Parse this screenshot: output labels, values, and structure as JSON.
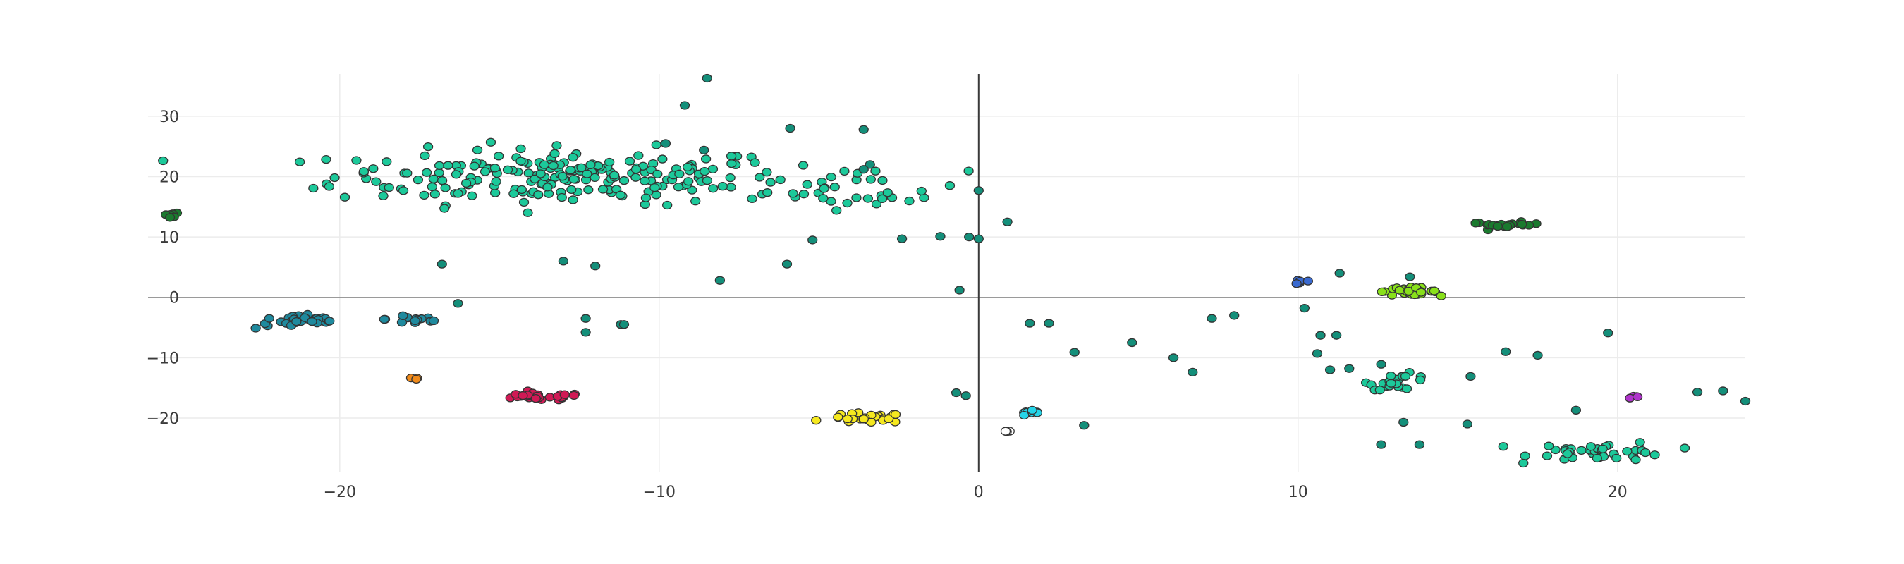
{
  "chart_data": {
    "type": "scatter",
    "title": "",
    "xlabel": "",
    "ylabel": "",
    "xlim": [
      -26,
      24
    ],
    "ylim": [
      -29,
      37
    ],
    "x_ticks": [
      -20,
      -10,
      0,
      10,
      20
    ],
    "y_ticks": [
      -20,
      -10,
      0,
      10,
      20,
      30
    ],
    "x_tick_labels": [
      "−20",
      "−10",
      "0",
      "10",
      "20"
    ],
    "y_tick_labels": [
      "−20",
      "−10",
      "0",
      "10",
      "20",
      "30"
    ],
    "grid": true,
    "legend": "none",
    "clusters": [
      {
        "name": "main-teal",
        "color": "#1cc99a",
        "center": [
          -13,
          20
        ],
        "spread": [
          6.0,
          3.8
        ],
        "count": 230
      },
      {
        "name": "main-teal-right",
        "color": "#1cc99a",
        "center": [
          -3.5,
          18
        ],
        "spread": [
          2.6,
          2.8
        ],
        "count": 30
      },
      {
        "name": "upper-right-green",
        "color": "#1a7a2e",
        "center": [
          16.5,
          12
        ],
        "spread": [
          0.9,
          0.4
        ],
        "count": 20
      },
      {
        "name": "upper-left-green",
        "color": "#1a7a2e",
        "center": [
          -25.2,
          13.8
        ],
        "spread": [
          0.5,
          0.35
        ],
        "count": 6
      },
      {
        "name": "lime",
        "color": "#88e01a",
        "center": [
          13.4,
          1
        ],
        "spread": [
          0.8,
          0.5
        ],
        "count": 30
      },
      {
        "name": "royal-blue",
        "color": "#3a6ad0",
        "center": [
          10.2,
          2.6
        ],
        "spread": [
          0.3,
          0.3
        ],
        "count": 5
      },
      {
        "name": "teal-blue-left",
        "color": "#1f8a9e",
        "center": [
          -21.2,
          -4
        ],
        "spread": [
          1.2,
          1.0
        ],
        "count": 30
      },
      {
        "name": "teal-blue-mid",
        "color": "#1f8a9e",
        "center": [
          -17.6,
          -3.6
        ],
        "spread": [
          0.8,
          0.9
        ],
        "count": 15
      },
      {
        "name": "crimson",
        "color": "#d01a55",
        "center": [
          -13.8,
          -16.5
        ],
        "spread": [
          1.2,
          0.5
        ],
        "count": 30
      },
      {
        "name": "orange",
        "color": "#f08a1a",
        "center": [
          -17.8,
          -13.5
        ],
        "spread": [
          0.5,
          0.3
        ],
        "count": 3
      },
      {
        "name": "yellow",
        "color": "#f5e81f",
        "center": [
          -3.5,
          -20
        ],
        "spread": [
          1.0,
          0.7
        ],
        "count": 30
      },
      {
        "name": "cyan",
        "color": "#25d4e8",
        "center": [
          1.6,
          -19.3
        ],
        "spread": [
          0.4,
          0.4
        ],
        "count": 8
      },
      {
        "name": "white",
        "color": "#ffffff",
        "center": [
          0.9,
          -22.3
        ],
        "spread": [
          0.15,
          0.15
        ],
        "count": 3
      },
      {
        "name": "lower-right-teal",
        "color": "#1cc99a",
        "center": [
          19.5,
          -25.5
        ],
        "spread": [
          1.8,
          1.3
        ],
        "count": 42
      },
      {
        "name": "mid-right-teal",
        "color": "#1cc99a",
        "center": [
          13.2,
          -14
        ],
        "spread": [
          0.8,
          1.1
        ],
        "count": 22
      },
      {
        "name": "purple",
        "color": "#b033cc",
        "center": [
          20.6,
          -16.5
        ],
        "spread": [
          0.25,
          0.25
        ],
        "count": 4
      },
      {
        "name": "sparse-dark-teal",
        "color": "#148f7a",
        "center": [
          2,
          -5
        ],
        "spread": [
          12,
          12
        ],
        "count": 0
      }
    ],
    "scattered_points": {
      "color": "#148f7a",
      "x": [
        -8.5,
        -9.2,
        -5.9,
        -3.6,
        -8.6,
        -9.8,
        -3.4,
        -3.6,
        -6,
        -5.2,
        -2.4,
        -1.2,
        -0.3,
        0,
        0.9,
        -0.6,
        -8.1,
        -0.7,
        -0.4,
        0,
        1.6,
        2.2,
        3.3,
        3,
        4.8,
        6.1,
        6.7,
        7.3,
        8,
        10.2,
        10.7,
        11.2,
        10.6,
        11,
        11.6,
        12.6,
        13.3,
        15.4,
        16.5,
        17.5,
        19.7,
        15.3,
        18.7,
        22.5,
        23.3,
        24,
        13.8,
        12.6,
        -16.3,
        -16.8,
        -12,
        -13,
        -11.2,
        -12.3,
        -11.1,
        -12.3,
        11.3,
        13.5
      ],
      "y": [
        36.3,
        31.8,
        28,
        27.8,
        24.4,
        25.5,
        22,
        21.2,
        5.5,
        9.5,
        9.7,
        10.1,
        10,
        9.7,
        12.5,
        1.2,
        2.8,
        -15.8,
        -16.3,
        17.7,
        -4.3,
        -4.3,
        -21.2,
        -9.1,
        -7.5,
        -10,
        -12.4,
        -3.5,
        -3,
        -1.8,
        -6.3,
        -6.3,
        -9.3,
        -12,
        -11.8,
        -11.1,
        -20.7,
        -13.1,
        -9,
        -9.6,
        -5.9,
        -21,
        -18.7,
        -15.7,
        -15.5,
        -17.2,
        -24.4,
        -24.4,
        -1,
        5.5,
        5.2,
        6,
        -4.5,
        -5.8,
        -4.5,
        -3.5,
        4,
        3.4
      ]
    },
    "zero_lines": {
      "x": 0,
      "y": 0
    }
  }
}
